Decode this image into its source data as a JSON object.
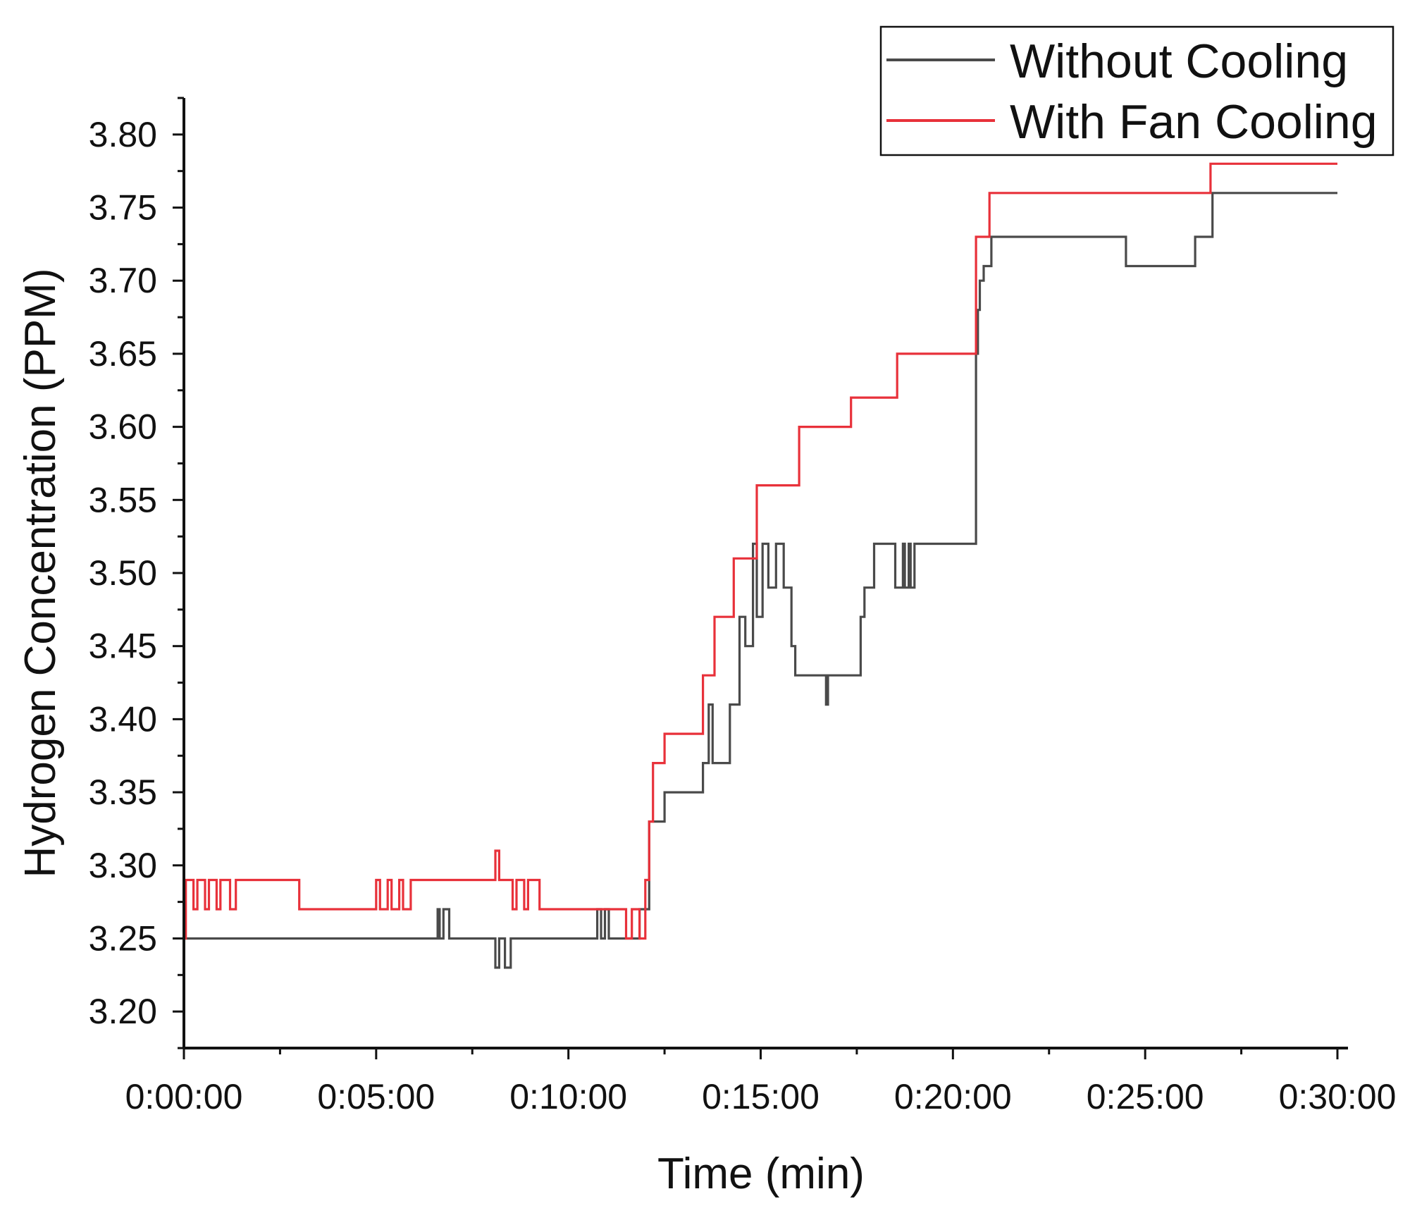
{
  "chart_data": {
    "type": "line",
    "title": "",
    "xlabel": "Time (min)",
    "ylabel": "Hydrogen Concentration (PPM)",
    "xlim": [
      0,
      30
    ],
    "ylim": [
      3.175,
      3.825
    ],
    "x_ticks": [
      0,
      5,
      10,
      15,
      20,
      25,
      30
    ],
    "x_tick_labels": [
      "0:00:00",
      "0:05:00",
      "0:10:00",
      "0:15:00",
      "0:20:00",
      "0:25:00",
      "0:30:00"
    ],
    "y_ticks": [
      3.2,
      3.25,
      3.3,
      3.35,
      3.4,
      3.45,
      3.5,
      3.55,
      3.6,
      3.65,
      3.7,
      3.75,
      3.8
    ],
    "y_tick_labels": [
      "3.20",
      "3.25",
      "3.30",
      "3.35",
      "3.40",
      "3.45",
      "3.50",
      "3.55",
      "3.60",
      "3.65",
      "3.70",
      "3.75",
      "3.80"
    ],
    "grid": false,
    "legend_position": "top-right",
    "series": [
      {
        "name": "Without Cooling",
        "color": "#4a4a4a",
        "x": [
          0,
          6.6,
          6.6,
          6.65,
          6.65,
          6.75,
          6.75,
          6.9,
          6.9,
          8.1,
          8.1,
          8.2,
          8.2,
          8.35,
          8.35,
          8.5,
          8.5,
          10.75,
          10.75,
          10.85,
          10.85,
          10.95,
          10.95,
          11.05,
          11.05,
          11.85,
          11.85,
          12.1,
          12.1,
          12.3,
          12.3,
          12.5,
          12.5,
          13.5,
          13.5,
          13.65,
          13.65,
          13.75,
          13.75,
          14.2,
          14.2,
          14.45,
          14.45,
          14.6,
          14.6,
          14.8,
          14.8,
          14.9,
          14.9,
          15.05,
          15.05,
          15.2,
          15.2,
          15.4,
          15.4,
          15.6,
          15.6,
          15.8,
          15.8,
          15.9,
          15.9,
          16.7,
          16.7,
          16.75,
          16.75,
          17.6,
          17.6,
          17.7,
          17.7,
          17.95,
          17.95,
          18.5,
          18.5,
          18.7,
          18.7,
          18.75,
          18.75,
          18.85,
          18.85,
          18.9,
          18.9,
          19.0,
          19.0,
          19.05,
          19.05,
          20.6,
          20.6,
          20.65,
          20.65,
          20.7,
          20.7,
          20.8,
          20.8,
          21.0,
          21.0,
          21.15,
          21.15,
          24.5,
          24.5,
          26.3,
          26.3,
          26.75,
          26.75,
          30
        ],
        "y": [
          3.25,
          3.25,
          3.27,
          3.27,
          3.25,
          3.25,
          3.27,
          3.27,
          3.25,
          3.25,
          3.23,
          3.23,
          3.25,
          3.25,
          3.23,
          3.23,
          3.25,
          3.25,
          3.27,
          3.27,
          3.25,
          3.25,
          3.27,
          3.27,
          3.25,
          3.25,
          3.27,
          3.27,
          3.33,
          3.33,
          3.33,
          3.33,
          3.35,
          3.35,
          3.37,
          3.37,
          3.41,
          3.41,
          3.37,
          3.37,
          3.41,
          3.41,
          3.47,
          3.47,
          3.45,
          3.45,
          3.52,
          3.52,
          3.47,
          3.47,
          3.52,
          3.52,
          3.49,
          3.49,
          3.52,
          3.52,
          3.49,
          3.49,
          3.45,
          3.45,
          3.43,
          3.43,
          3.41,
          3.41,
          3.43,
          3.43,
          3.47,
          3.47,
          3.49,
          3.49,
          3.52,
          3.52,
          3.49,
          3.49,
          3.52,
          3.52,
          3.49,
          3.49,
          3.52,
          3.52,
          3.49,
          3.49,
          3.52,
          3.52,
          3.52,
          3.52,
          3.65,
          3.65,
          3.68,
          3.68,
          3.7,
          3.7,
          3.71,
          3.71,
          3.73,
          3.73,
          3.73,
          3.73,
          3.71,
          3.71,
          3.73,
          3.73,
          3.76,
          3.76
        ]
      },
      {
        "name": "With Fan Cooling",
        "color": "#e8313a",
        "x": [
          0,
          0.05,
          0.05,
          0.25,
          0.25,
          0.35,
          0.35,
          0.55,
          0.55,
          0.65,
          0.65,
          0.85,
          0.85,
          0.95,
          0.95,
          1.2,
          1.2,
          1.35,
          1.35,
          3.0,
          3.0,
          5.0,
          5.0,
          5.1,
          5.1,
          5.3,
          5.3,
          5.4,
          5.4,
          5.6,
          5.6,
          5.7,
          5.7,
          5.9,
          5.9,
          6.05,
          6.05,
          8.1,
          8.1,
          8.2,
          8.2,
          8.55,
          8.55,
          8.65,
          8.65,
          8.85,
          8.85,
          8.95,
          8.95,
          9.25,
          9.25,
          11.5,
          11.5,
          11.65,
          11.65,
          11.85,
          11.85,
          12.0,
          12.0,
          12.1,
          12.1,
          12.2,
          12.2,
          12.5,
          12.5,
          13.5,
          13.5,
          13.8,
          13.8,
          14.3,
          14.3,
          14.9,
          14.9,
          16.0,
          16.0,
          17.35,
          17.35,
          18.55,
          18.55,
          20.6,
          20.6,
          20.95,
          20.95,
          26.7,
          26.7,
          30
        ],
        "y": [
          3.25,
          3.25,
          3.29,
          3.29,
          3.27,
          3.27,
          3.29,
          3.29,
          3.27,
          3.27,
          3.29,
          3.29,
          3.27,
          3.27,
          3.29,
          3.29,
          3.27,
          3.27,
          3.29,
          3.29,
          3.27,
          3.27,
          3.29,
          3.29,
          3.27,
          3.27,
          3.29,
          3.29,
          3.27,
          3.27,
          3.29,
          3.29,
          3.27,
          3.27,
          3.29,
          3.29,
          3.29,
          3.29,
          3.31,
          3.31,
          3.29,
          3.29,
          3.27,
          3.27,
          3.29,
          3.29,
          3.27,
          3.27,
          3.29,
          3.29,
          3.27,
          3.27,
          3.25,
          3.25,
          3.27,
          3.27,
          3.25,
          3.25,
          3.29,
          3.29,
          3.33,
          3.33,
          3.37,
          3.37,
          3.39,
          3.39,
          3.43,
          3.43,
          3.47,
          3.47,
          3.51,
          3.51,
          3.56,
          3.56,
          3.6,
          3.6,
          3.62,
          3.62,
          3.65,
          3.65,
          3.73,
          3.73,
          3.76,
          3.76,
          3.78,
          3.78
        ]
      }
    ]
  }
}
